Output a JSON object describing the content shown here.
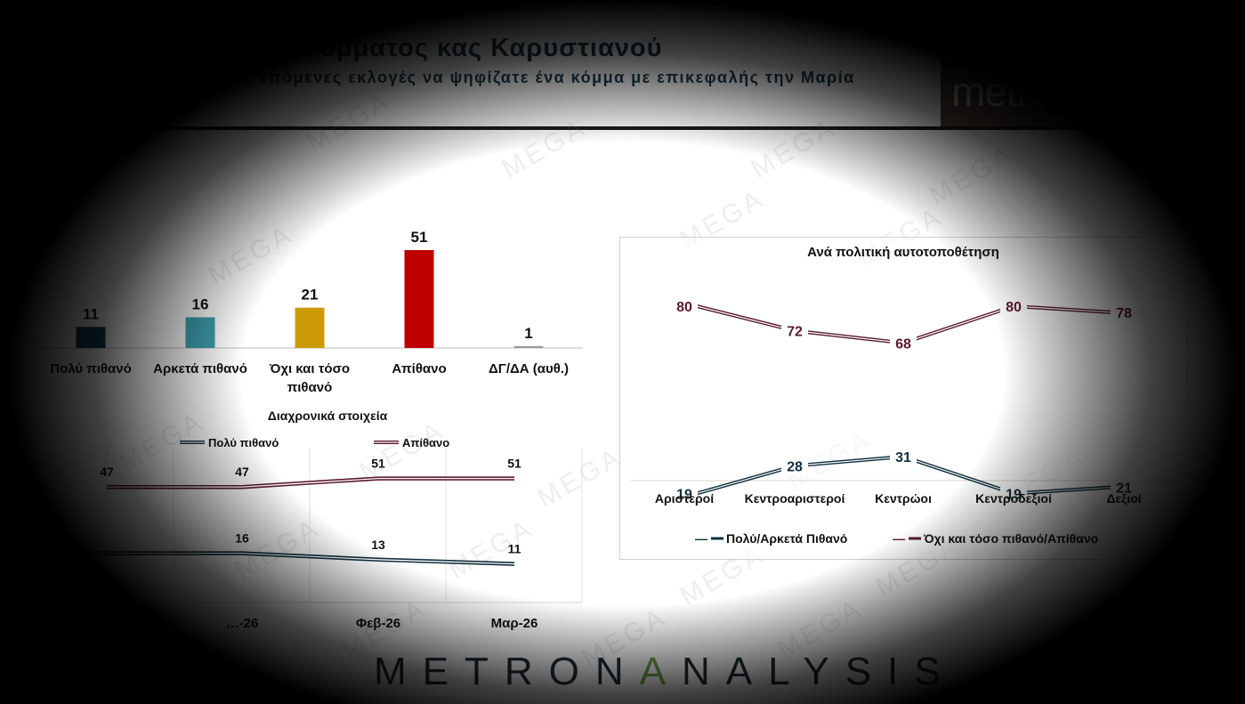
{
  "header": {
    "title": "…τής κόμματος κας Καρυστιανού",
    "subtitle": "…ς επόμενες εκλογές να ψηφίζατε ένα κόμμα με επικεφαλής την Μαρία",
    "logo_text": "metro"
  },
  "footer": {
    "brand_a": "METRON",
    "brand_b": "A",
    "brand_c": "NALYSIS"
  },
  "watermark_text": "MEGA",
  "colors": {
    "bar_dark": "#17404f",
    "bar_teal": "#3ea0b0",
    "bar_gold": "#cc9a06",
    "bar_red": "#c00000",
    "bar_grey": "#9a9a9a",
    "series_blue": "#0f2f3d",
    "series_maroon": "#5a1a2e"
  },
  "chart_data": [
    {
      "type": "bar",
      "categories": [
        "Πολύ πιθανό",
        "Αρκετά πιθανό",
        "Όχι και τόσο πιθανό",
        "Απίθανο",
        "ΔΓ/ΔΑ (αυθ.)"
      ],
      "category_lines": [
        [
          "Πολύ πιθανό"
        ],
        [
          "Αρκετά πιθανό"
        ],
        [
          "Όχι και τόσο",
          "πιθανό"
        ],
        [
          "Απίθανο"
        ],
        [
          "ΔΓ/ΔΑ (αυθ.)"
        ]
      ],
      "values": [
        11,
        16,
        21,
        51,
        1
      ],
      "bar_colors": [
        "#17404f",
        "#3ea0b0",
        "#cc9a06",
        "#c00000",
        "#9a9a9a"
      ]
    },
    {
      "type": "line",
      "title": "Διαχρονικά στοιχεία",
      "categories": [
        "",
        "…-26",
        "Φεβ-26",
        "Μαρ-26"
      ],
      "series": [
        {
          "name": "Πολύ πιθανό",
          "values": [
            null,
            16,
            13,
            11
          ],
          "color": "#0f2f3d"
        },
        {
          "name": "Απίθανο",
          "values": [
            47,
            47,
            51,
            51
          ],
          "color": "#5a1a2e"
        }
      ],
      "grid": true,
      "legend": "top"
    },
    {
      "type": "line",
      "title": "Ανά πολιτική αυτοτοποθέτηση",
      "categories": [
        "Αριστεροί",
        "Κεντροαριστεροί",
        "Κεντρώοι",
        "Κεντροδεξιοί",
        "Δεξιοί"
      ],
      "series": [
        {
          "name": "Πολύ/Αρκετά Πιθανό",
          "values": [
            19,
            28,
            31,
            19,
            21
          ],
          "color": "#0f2f3d"
        },
        {
          "name": "Όχι και τόσο πιθανό/Απίθανο",
          "values": [
            80,
            72,
            68,
            80,
            78
          ],
          "color": "#5a1a2e"
        }
      ],
      "legend": "bottom"
    }
  ]
}
